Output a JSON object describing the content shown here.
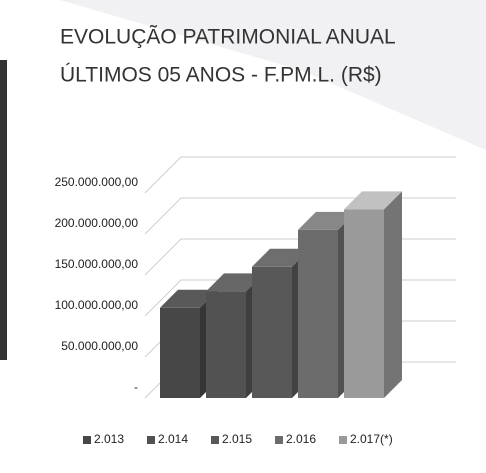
{
  "chart_data": {
    "type": "bar3d",
    "title": "EVOLUÇÃO PATRIMONIAL ANUAL",
    "subtitle": "ÚLTIMOS 05 ANOS - F.PM.L. (R$)",
    "series": [
      {
        "name": "2.013",
        "color": "#474747",
        "values": [
          110000000
        ]
      },
      {
        "name": "2.014",
        "color": "#525252",
        "values": [
          130000000
        ]
      },
      {
        "name": "2.015",
        "color": "#585858",
        "values": [
          160000000
        ]
      },
      {
        "name": "2.016",
        "color": "#6c6c6c",
        "values": [
          205000000
        ]
      },
      {
        "name": "2.017(*)",
        "color": "#9a9a9a",
        "values": [
          230000000
        ]
      }
    ],
    "ylim": [
      0,
      300000000
    ],
    "yticks": [
      {
        "value": 0,
        "label": "-"
      },
      {
        "value": 50000000,
        "label": "50.000.000,00"
      },
      {
        "value": 100000000,
        "label": "100.000.000,00"
      },
      {
        "value": 150000000,
        "label": "150.000.000,00"
      },
      {
        "value": 200000000,
        "label": "200.000.000,00"
      },
      {
        "value": 250000000,
        "label": "250.000.000,00"
      }
    ],
    "grid": true,
    "legend": "bottom"
  }
}
